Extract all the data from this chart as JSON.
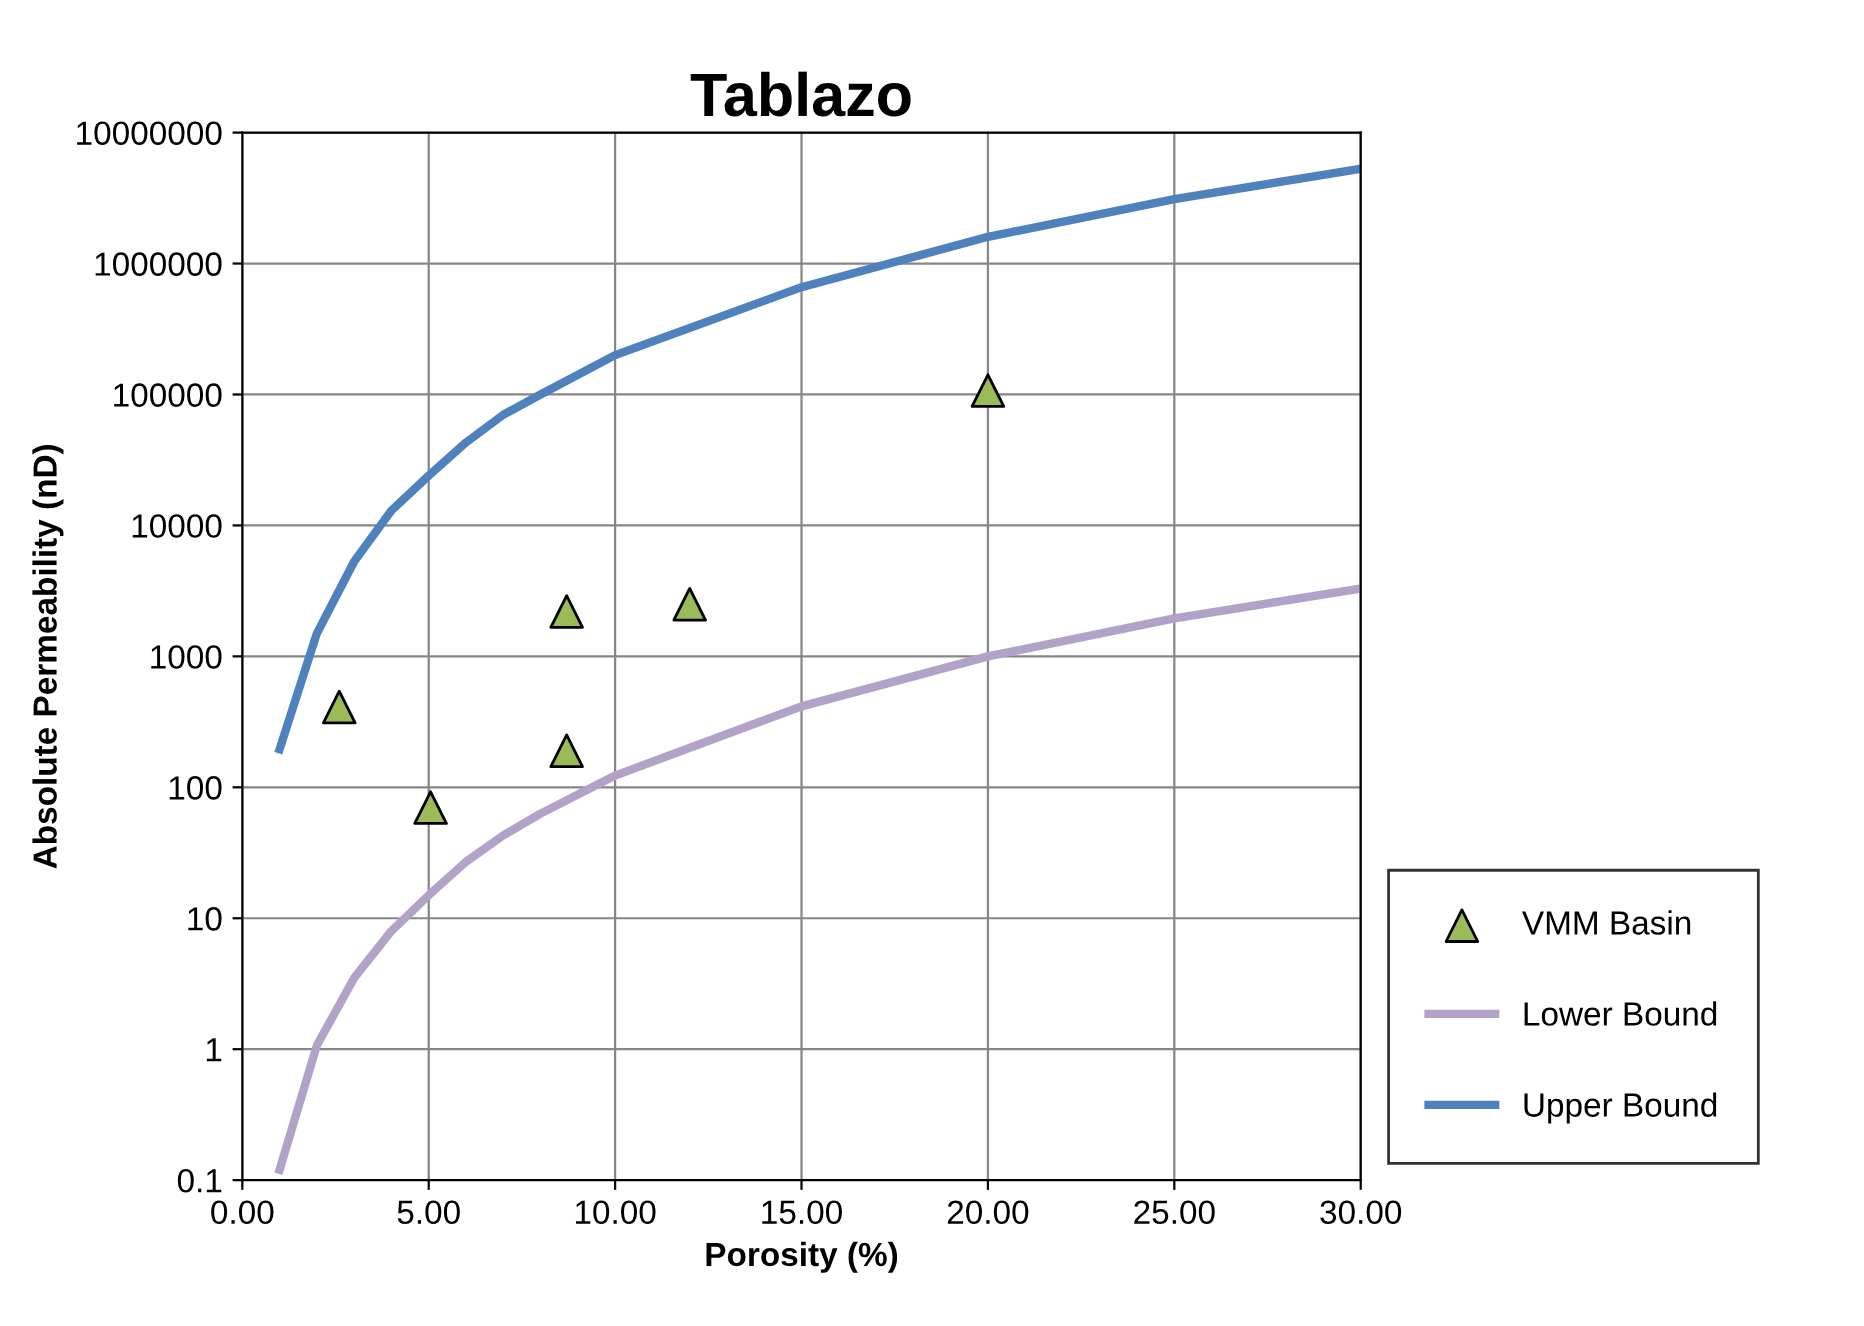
{
  "chart_data": {
    "type": "line",
    "title": "Tablazo",
    "xlabel": "Porosity (%)",
    "ylabel": "Absolute Permeability (nD)",
    "log": "y",
    "grid": true,
    "legend": "bottom right",
    "xlim": [
      0,
      30
    ],
    "xticks": [
      {
        "value": 0,
        "label": "0.00"
      },
      {
        "value": 5,
        "label": "5.00"
      },
      {
        "value": 10,
        "label": "10.00"
      },
      {
        "value": 15,
        "label": "15.00"
      },
      {
        "value": 20,
        "label": "20.00"
      },
      {
        "value": 25,
        "label": "25.00"
      },
      {
        "value": 30,
        "label": "30.00"
      }
    ],
    "ylim": [
      0.1,
      10000000
    ],
    "yticks": [
      0.1,
      1,
      10,
      100,
      1000,
      10000,
      100000,
      1000000,
      10000000
    ],
    "series": [
      {
        "name": "VMM Basin",
        "type": "scatter",
        "marker": "triangle",
        "color": "#9bbb59",
        "x": [
          2.6,
          5.05,
          8.7,
          8.7,
          12,
          20
        ],
        "values": [
          410,
          70,
          2200,
          190,
          2500,
          107000
        ]
      },
      {
        "name": "Lower Bound",
        "marker": "none",
        "color": "#b3a2c7",
        "x": [
          1,
          2,
          3,
          4,
          5,
          6,
          7,
          8,
          10,
          15,
          20,
          25,
          30
        ],
        "values": [
          0.12,
          1.07,
          3.5,
          8,
          15,
          27,
          43,
          63,
          123,
          415,
          1000,
          1950,
          3300
        ]
      },
      {
        "name": "Upper Bound",
        "marker": "none",
        "color": "#4f81bd",
        "x": [
          1,
          2,
          3,
          4,
          5,
          6,
          7,
          8,
          10,
          15,
          20,
          25,
          30
        ],
        "values": [
          195,
          1500,
          5300,
          13000,
          24000,
          43000,
          70000,
          100000,
          200000,
          660000,
          1600000,
          3100000,
          5300000
        ]
      }
    ]
  }
}
